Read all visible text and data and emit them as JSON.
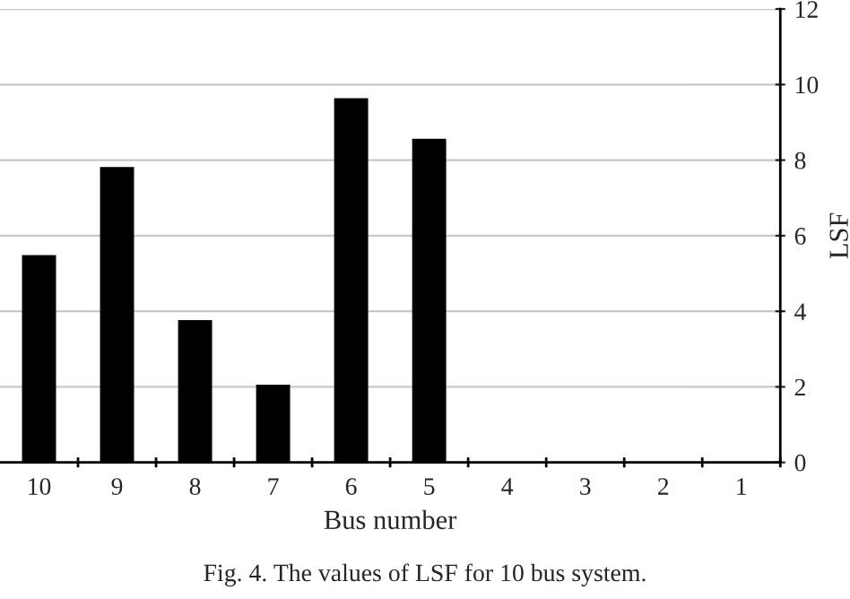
{
  "chart_data": {
    "type": "bar",
    "xlabel": "Bus number",
    "ylabel": "LSF",
    "categories": [
      "10",
      "9",
      "8",
      "7",
      "6",
      "5",
      "4",
      "3",
      "2",
      "1"
    ],
    "values": [
      5.47,
      7.8,
      3.75,
      2.04,
      9.62,
      8.55,
      0,
      0,
      0,
      0
    ],
    "color": "#000000",
    "ylim": [
      0,
      12
    ],
    "yticks": [
      0,
      2,
      4,
      6,
      8,
      10,
      12
    ],
    "grid": "y",
    "annotations": [
      "Fig. 4. The values of LSF for 10 bus system."
    ]
  }
}
